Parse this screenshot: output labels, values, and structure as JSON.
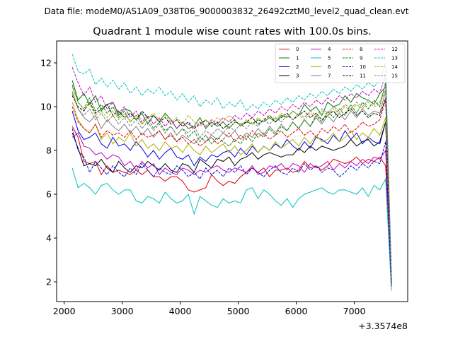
{
  "header": {
    "file_label": "Data file: modeM0/AS1A09_038T06_9000003832_26492cztM0_level2_quad_clean.evt"
  },
  "chart_data": {
    "type": "line",
    "title": "Quadrant 1 module wise count rates with 100.0s bins.",
    "xlabel": "",
    "ylabel": "",
    "x_offset_label": "+3.3574e8",
    "xlim": [
      1870,
      7920
    ],
    "ylim": [
      1.1,
      13.0
    ],
    "xticks": [
      2000,
      3000,
      4000,
      5000,
      6000,
      7000
    ],
    "yticks": [
      2,
      4,
      6,
      8,
      10,
      12
    ],
    "x": [
      2140,
      2240,
      2340,
      2440,
      2540,
      2640,
      2740,
      2840,
      2940,
      3040,
      3140,
      3240,
      3340,
      3440,
      3540,
      3640,
      3740,
      3840,
      3940,
      4040,
      4140,
      4240,
      4340,
      4440,
      4540,
      4640,
      4740,
      4840,
      4940,
      5040,
      5140,
      5240,
      5340,
      5440,
      5540,
      5640,
      5740,
      5840,
      5940,
      6040,
      6140,
      6240,
      6340,
      6440,
      6540,
      6640,
      6740,
      6840,
      6940,
      7040,
      7140,
      7240,
      7340,
      7440,
      7540,
      7640
    ],
    "legend_position": "upper right",
    "series": [
      {
        "name": "0",
        "color": "#e00000",
        "dash": "solid",
        "values": [
          9.1,
          8.6,
          7.5,
          7.4,
          7.5,
          6.9,
          7.3,
          7.0,
          7.1,
          7.0,
          6.9,
          7.1,
          6.9,
          7.1,
          6.8,
          6.8,
          6.6,
          6.8,
          6.8,
          6.6,
          6.2,
          6.1,
          6.2,
          6.3,
          6.9,
          6.6,
          6.4,
          6.6,
          6.5,
          6.8,
          7.0,
          7.2,
          7.0,
          7.2,
          6.8,
          7.1,
          7.1,
          7.2,
          7.0,
          7.1,
          7.5,
          7.2,
          7.3,
          7.1,
          7.3,
          7.6,
          7.5,
          7.4,
          7.5,
          7.7,
          7.4,
          7.6,
          7.5,
          7.7,
          7.3,
          2.0
        ]
      },
      {
        "name": "1",
        "color": "#008000",
        "dash": "solid",
        "values": [
          11.2,
          10.3,
          10.6,
          10.1,
          10.5,
          9.8,
          10.1,
          10.2,
          9.6,
          9.9,
          9.8,
          9.4,
          9.7,
          9.2,
          9.6,
          9.3,
          9.7,
          9.4,
          9.0,
          9.3,
          9.0,
          9.1,
          9.5,
          9.0,
          9.3,
          9.1,
          9.3,
          9.0,
          9.3,
          9.2,
          9.3,
          9.2,
          9.4,
          9.3,
          9.5,
          9.3,
          9.6,
          9.5,
          9.8,
          9.6,
          10.1,
          9.8,
          10.0,
          9.6,
          10.2,
          10.0,
          10.1,
          10.5,
          10.2,
          10.6,
          10.4,
          10.3,
          10.1,
          10.6,
          10.9,
          1.9
        ]
      },
      {
        "name": "2",
        "color": "#0000e0",
        "dash": "solid",
        "values": [
          9.8,
          8.9,
          8.5,
          8.6,
          8.8,
          8.3,
          8.1,
          8.6,
          8.2,
          8.3,
          8.0,
          8.4,
          8.1,
          7.7,
          8.0,
          7.6,
          7.9,
          8.1,
          7.7,
          7.6,
          7.8,
          7.3,
          7.7,
          7.5,
          7.8,
          7.7,
          7.9,
          8.0,
          7.7,
          8.1,
          7.8,
          8.2,
          7.9,
          8.2,
          8.0,
          8.3,
          8.1,
          8.5,
          8.2,
          8.0,
          8.4,
          8.1,
          8.6,
          8.5,
          8.3,
          8.7,
          8.4,
          8.9,
          8.5,
          8.8,
          8.3,
          8.6,
          8.4,
          8.3,
          9.3,
          1.8
        ]
      },
      {
        "name": "3",
        "color": "#000000",
        "dash": "solid",
        "values": [
          8.8,
          8.1,
          7.3,
          7.4,
          7.3,
          7.6,
          7.2,
          7.0,
          7.5,
          7.2,
          7.0,
          7.3,
          7.2,
          7.5,
          7.3,
          7.1,
          7.4,
          7.1,
          7.0,
          7.4,
          7.3,
          7.0,
          7.6,
          7.4,
          7.2,
          7.6,
          7.5,
          7.7,
          7.3,
          7.6,
          7.7,
          7.9,
          7.6,
          7.8,
          7.9,
          7.8,
          7.7,
          7.8,
          7.8,
          8.1,
          7.9,
          8.2,
          8.0,
          8.2,
          8.1,
          8.0,
          8.1,
          8.2,
          8.5,
          8.2,
          8.4,
          8.5,
          8.2,
          8.4,
          9.3,
          2.0
        ]
      },
      {
        "name": "4",
        "color": "#c000c0",
        "dash": "solid",
        "values": [
          8.6,
          8.8,
          8.2,
          8.1,
          7.8,
          7.9,
          7.6,
          7.8,
          7.7,
          7.3,
          7.5,
          7.1,
          7.5,
          7.2,
          7.4,
          6.9,
          7.2,
          7.0,
          6.9,
          7.2,
          7.1,
          6.9,
          7.1,
          7.0,
          7.2,
          7.3,
          7.1,
          7.0,
          7.2,
          7.1,
          7.0,
          7.3,
          6.9,
          7.0,
          7.3,
          7.2,
          7.4,
          7.1,
          7.4,
          7.3,
          7.0,
          7.4,
          7.2,
          7.3,
          7.5,
          7.1,
          7.4,
          7.2,
          7.5,
          7.3,
          7.6,
          7.4,
          7.7,
          7.6,
          8.0,
          1.9
        ]
      },
      {
        "name": "5",
        "color": "#00c0c0",
        "dash": "solid",
        "values": [
          7.2,
          6.3,
          6.5,
          6.3,
          6.0,
          6.4,
          6.5,
          6.2,
          6.0,
          6.2,
          6.2,
          5.7,
          5.6,
          5.9,
          5.8,
          5.6,
          6.1,
          5.8,
          5.6,
          5.7,
          6.0,
          5.1,
          5.9,
          5.7,
          5.5,
          5.4,
          5.8,
          5.6,
          5.7,
          5.6,
          6.2,
          6.3,
          5.8,
          6.2,
          6.0,
          5.7,
          5.5,
          5.8,
          5.4,
          5.8,
          6.0,
          6.1,
          6.2,
          6.3,
          6.1,
          6.0,
          6.2,
          6.2,
          6.1,
          6.0,
          6.3,
          5.9,
          6.4,
          6.2,
          6.7,
          1.6
        ]
      },
      {
        "name": "6",
        "color": "#b0b000",
        "dash": "solid",
        "values": [
          10.2,
          9.4,
          9.0,
          8.8,
          9.2,
          8.5,
          8.8,
          8.3,
          8.6,
          8.4,
          8.8,
          8.2,
          8.5,
          8.1,
          8.3,
          8.0,
          8.4,
          8.1,
          8.2,
          7.9,
          8.3,
          8.0,
          7.8,
          8.2,
          7.9,
          8.1,
          8.3,
          7.9,
          8.2,
          7.8,
          8.0,
          8.3,
          7.9,
          8.2,
          8.0,
          8.4,
          8.1,
          8.3,
          8.5,
          8.2,
          8.6,
          8.3,
          8.7,
          8.4,
          8.5,
          8.8,
          8.4,
          8.6,
          8.9,
          8.5,
          8.8,
          8.6,
          9.0,
          8.7,
          9.5,
          1.9
        ]
      },
      {
        "name": "7",
        "color": "#808080",
        "dash": "solid",
        "values": [
          10.7,
          9.9,
          9.5,
          9.3,
          9.6,
          9.0,
          9.4,
          9.1,
          8.9,
          9.2,
          8.8,
          9.1,
          8.7,
          9.0,
          8.6,
          8.9,
          8.5,
          8.8,
          8.4,
          8.7,
          8.5,
          8.3,
          8.6,
          8.4,
          8.7,
          8.5,
          8.8,
          8.6,
          8.9,
          8.5,
          8.8,
          8.6,
          9.0,
          8.7,
          9.1,
          8.8,
          9.2,
          8.9,
          9.3,
          9.0,
          9.4,
          9.1,
          9.5,
          9.2,
          9.6,
          9.3,
          9.7,
          9.4,
          9.8,
          9.5,
          9.9,
          9.6,
          9.8,
          9.7,
          10.7,
          2.0
        ]
      },
      {
        "name": "8",
        "color": "#e00000",
        "dash": "dashed",
        "values": [
          10.0,
          9.3,
          9.0,
          8.8,
          9.2,
          8.6,
          8.9,
          8.7,
          8.8,
          8.6,
          8.9,
          8.5,
          8.8,
          8.6,
          8.7,
          8.9,
          8.5,
          8.7,
          8.4,
          8.6,
          8.3,
          8.5,
          8.2,
          8.4,
          8.6,
          8.3,
          8.5,
          8.8,
          8.4,
          8.7,
          8.5,
          8.9,
          8.6,
          8.8,
          8.5,
          8.7,
          8.9,
          8.6,
          8.8,
          9.0,
          8.7,
          8.9,
          8.6,
          9.0,
          8.8,
          9.1,
          8.9,
          9.2,
          8.8,
          9.0,
          9.3,
          9.1,
          9.2,
          9.4,
          10.3,
          2.0
        ]
      },
      {
        "name": "9",
        "color": "#008000",
        "dash": "dashed",
        "values": [
          11.0,
          10.2,
          9.9,
          10.4,
          9.8,
          10.1,
          9.7,
          10.0,
          9.5,
          9.8,
          9.3,
          9.6,
          9.2,
          9.5,
          9.0,
          9.3,
          8.9,
          9.1,
          8.7,
          9.0,
          8.6,
          8.9,
          8.4,
          8.7,
          8.3,
          8.6,
          8.4,
          8.2,
          8.5,
          8.3,
          8.7,
          8.4,
          8.8,
          8.6,
          9.0,
          8.7,
          9.1,
          8.9,
          9.3,
          9.0,
          9.4,
          9.1,
          9.6,
          9.3,
          9.8,
          9.5,
          9.9,
          9.6,
          10.1,
          9.7,
          10.2,
          9.9,
          10.3,
          10.0,
          11.1,
          2.2
        ]
      },
      {
        "name": "10",
        "color": "#0000e0",
        "dash": "dashed",
        "values": [
          9.0,
          8.0,
          7.7,
          7.0,
          7.5,
          7.2,
          6.9,
          7.3,
          7.0,
          6.8,
          7.2,
          6.9,
          7.4,
          7.1,
          6.8,
          7.2,
          7.0,
          6.9,
          7.3,
          7.1,
          6.8,
          7.0,
          6.7,
          7.2,
          6.9,
          7.1,
          6.8,
          7.2,
          7.0,
          7.3,
          6.9,
          7.2,
          7.0,
          6.8,
          7.1,
          7.3,
          7.0,
          6.9,
          7.2,
          7.0,
          7.4,
          7.1,
          7.3,
          7.0,
          7.2,
          7.1,
          6.8,
          7.0,
          7.3,
          7.1,
          7.4,
          7.2,
          7.5,
          7.4,
          8.4,
          1.8
        ]
      },
      {
        "name": "11",
        "color": "#000000",
        "dash": "dashed",
        "values": [
          10.5,
          10.0,
          9.8,
          10.2,
          9.7,
          9.9,
          10.1,
          9.6,
          9.8,
          9.5,
          9.7,
          9.4,
          9.8,
          9.5,
          9.6,
          9.3,
          9.5,
          9.2,
          9.4,
          9.1,
          9.3,
          9.0,
          9.2,
          9.4,
          9.1,
          9.3,
          9.0,
          9.2,
          9.4,
          9.1,
          9.3,
          9.5,
          9.2,
          9.4,
          9.6,
          9.3,
          9.5,
          9.7,
          9.4,
          9.6,
          9.8,
          9.5,
          9.7,
          9.4,
          9.6,
          9.8,
          9.5,
          9.7,
          9.9,
          9.6,
          9.8,
          9.5,
          9.7,
          9.6,
          10.4,
          2.1
        ]
      },
      {
        "name": "12",
        "color": "#c000c0",
        "dash": "dashed",
        "values": [
          11.8,
          11.1,
          10.5,
          10.9,
          10.2,
          10.5,
          9.9,
          10.2,
          9.7,
          10.0,
          9.5,
          9.8,
          9.3,
          9.6,
          9.2,
          9.5,
          9.1,
          9.4,
          9.0,
          9.3,
          9.2,
          9.0,
          9.3,
          9.1,
          9.4,
          9.2,
          9.5,
          9.3,
          9.6,
          9.4,
          9.7,
          9.5,
          9.8,
          9.6,
          9.9,
          9.7,
          10.0,
          9.8,
          10.1,
          9.9,
          10.2,
          10.0,
          10.3,
          10.1,
          10.4,
          10.2,
          10.5,
          10.3,
          10.6,
          10.4,
          10.7,
          10.5,
          10.8,
          10.6,
          11.5,
          2.2
        ]
      },
      {
        "name": "13",
        "color": "#00c0c0",
        "dash": "dashed",
        "values": [
          12.4,
          11.6,
          11.5,
          11.7,
          11.0,
          11.3,
          10.9,
          11.2,
          10.8,
          11.1,
          10.6,
          10.9,
          10.5,
          10.8,
          10.6,
          10.9,
          10.5,
          10.7,
          10.3,
          10.6,
          10.2,
          10.5,
          10.0,
          10.3,
          10.1,
          10.4,
          9.9,
          10.2,
          10.0,
          10.3,
          9.8,
          10.1,
          9.9,
          10.2,
          10.0,
          10.3,
          10.1,
          10.4,
          10.2,
          10.5,
          10.3,
          10.6,
          10.4,
          10.7,
          10.5,
          10.8,
          10.6,
          10.9,
          10.7,
          11.0,
          10.8,
          11.1,
          10.9,
          11.2,
          12.0,
          2.3
        ]
      },
      {
        "name": "14",
        "color": "#b0b000",
        "dash": "dashed",
        "values": [
          10.9,
          10.2,
          9.9,
          10.1,
          9.6,
          9.8,
          9.5,
          9.8,
          9.4,
          9.7,
          9.3,
          9.6,
          9.2,
          9.5,
          9.7,
          9.4,
          9.6,
          9.3,
          9.5,
          9.2,
          9.6,
          9.3,
          9.1,
          9.4,
          9.2,
          9.5,
          9.3,
          9.6,
          9.4,
          9.1,
          9.4,
          9.2,
          9.5,
          9.3,
          9.6,
          9.4,
          9.7,
          9.5,
          9.8,
          9.6,
          9.4,
          9.7,
          9.5,
          9.8,
          9.6,
          9.9,
          9.7,
          10.0,
          9.8,
          10.1,
          9.9,
          10.2,
          10.0,
          10.1,
          10.8,
          2.1
        ]
      },
      {
        "name": "15",
        "color": "#808080",
        "dash": "dashed",
        "values": [
          10.6,
          9.9,
          9.6,
          9.9,
          9.4,
          9.7,
          9.3,
          9.6,
          9.2,
          9.5,
          9.1,
          9.4,
          9.0,
          9.3,
          8.9,
          9.2,
          8.8,
          9.1,
          8.7,
          9.0,
          8.8,
          9.1,
          8.6,
          8.9,
          8.7,
          9.0,
          8.8,
          9.1,
          8.9,
          9.2,
          9.0,
          9.3,
          9.1,
          9.4,
          9.2,
          9.5,
          9.3,
          9.6,
          9.4,
          9.7,
          9.5,
          9.8,
          9.6,
          9.9,
          9.7,
          10.0,
          9.8,
          10.1,
          9.9,
          10.2,
          10.0,
          10.3,
          10.1,
          10.2,
          11.0,
          2.1
        ]
      }
    ]
  }
}
